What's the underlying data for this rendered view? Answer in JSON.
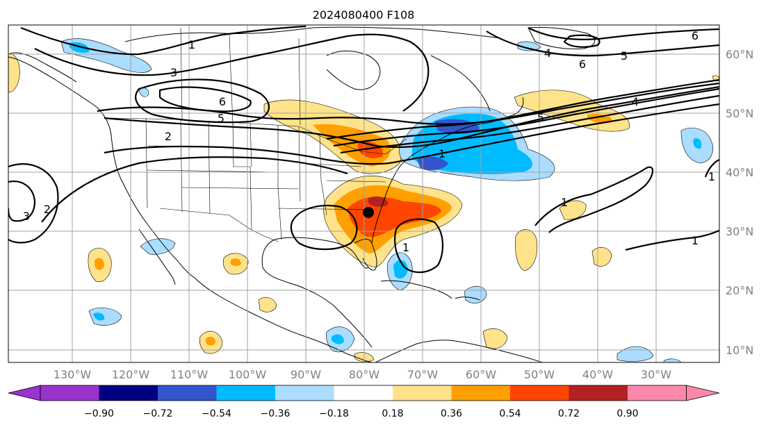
{
  "title": "2024080400 F108",
  "map": {
    "lon_labels": [
      "130°W",
      "120°W",
      "110°W",
      "100°W",
      "90°W",
      "80°W",
      "70°W",
      "60°W",
      "50°W",
      "40°W",
      "30°W"
    ],
    "lat_labels": [
      "60°N",
      "50°N",
      "40°N",
      "30°N",
      "20°N",
      "10°N"
    ],
    "colors": {
      "land_outline": "#000000",
      "grid": "#a0a0a0",
      "tick_label": "#808080"
    }
  },
  "colorbar": {
    "labels": [
      "−0.90",
      "−0.72",
      "−0.54",
      "−0.36",
      "−0.18",
      "0.18",
      "0.36",
      "0.54",
      "0.72",
      "0.90"
    ],
    "colors": [
      "#9933cc",
      "#000080",
      "#3355cc",
      "#00bbff",
      "#aaddff",
      "#ffffff",
      "#ffe38a",
      "#ffa000",
      "#ff4500",
      "#b22222",
      "#ff88aa"
    ]
  },
  "contour_labels": [
    "1",
    "3",
    "6",
    "5",
    "2",
    "3",
    "2",
    "4",
    "5",
    "6",
    "6",
    "5",
    "4",
    "1",
    "1",
    "1",
    "1",
    "1"
  ],
  "marker": {
    "name": "storm center",
    "color": "#000000"
  }
}
